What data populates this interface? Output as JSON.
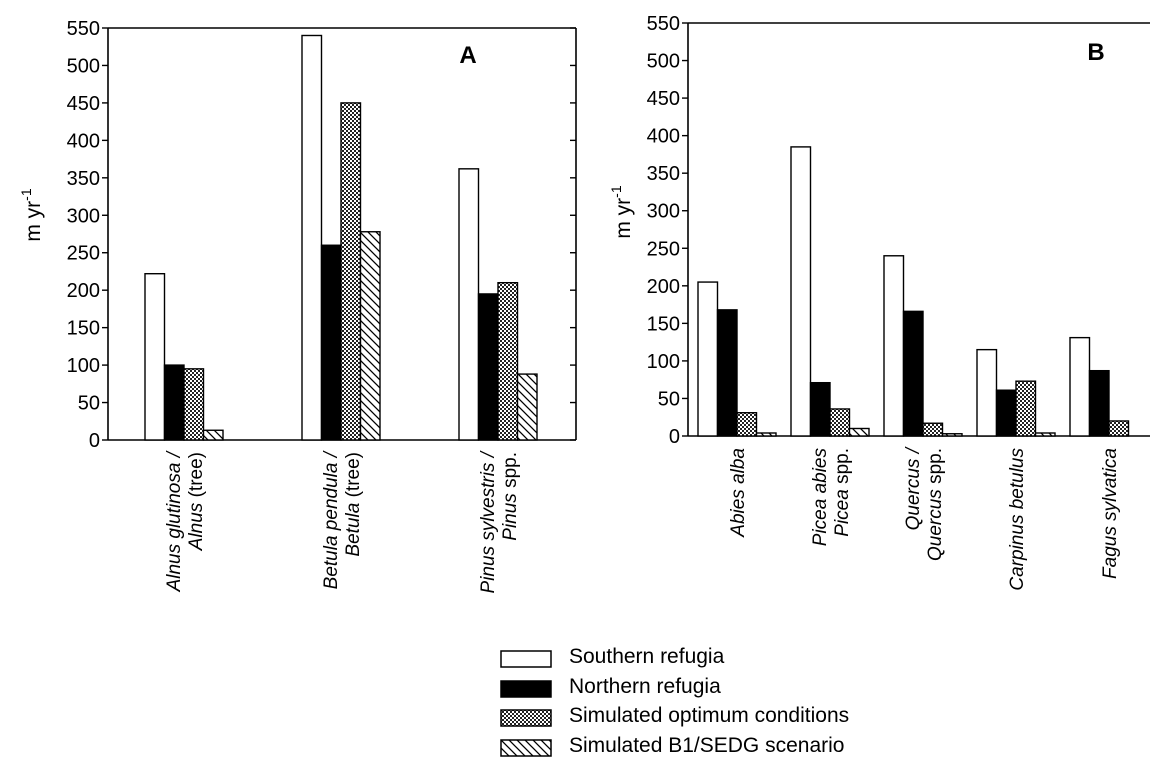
{
  "chart_data": [
    {
      "type": "bar",
      "panel_label": "A",
      "ylabel": "m yr",
      "ylabel_sup": "-1",
      "ylim": [
        0,
        550
      ],
      "yticks": [
        0,
        50,
        100,
        150,
        200,
        250,
        300,
        350,
        400,
        450,
        500,
        550
      ],
      "categories": [
        {
          "italic": "Alnus glutinosa /",
          "line2_italic": "Alnus",
          "line2_plain": " (tree)"
        },
        {
          "italic": "Betula pendula /",
          "line2_italic": "Betula",
          "line2_plain": " (tree)"
        },
        {
          "italic": "Pinus sylvestris /",
          "line2_italic": "Pinus",
          "line2_plain": " spp."
        }
      ],
      "series": [
        {
          "name": "Southern refugia",
          "values": [
            222,
            540,
            362
          ]
        },
        {
          "name": "Northern refugia",
          "values": [
            100,
            260,
            195
          ]
        },
        {
          "name": "Simulated optimum conditions",
          "values": [
            95,
            450,
            210
          ]
        },
        {
          "name": "Simulated B1/SEDG scenario",
          "values": [
            13,
            278,
            88
          ]
        }
      ]
    },
    {
      "type": "bar",
      "panel_label": "B",
      "ylabel": "m yr",
      "ylabel_sup": "-1",
      "ylim": [
        0,
        550
      ],
      "yticks": [
        0,
        50,
        100,
        150,
        200,
        250,
        300,
        350,
        400,
        450,
        500,
        550
      ],
      "categories": [
        {
          "italic": "Abies alba",
          "line2_italic": "",
          "line2_plain": ""
        },
        {
          "italic": "Picea abies",
          "line2_italic": "Picea",
          "line2_plain": " spp."
        },
        {
          "italic": "Quercus /",
          "line2_italic": "Quercus",
          "line2_plain": " spp."
        },
        {
          "italic": "Carpinus betulus",
          "line2_italic": "",
          "line2_plain": ""
        },
        {
          "italic": "Fagus sylvatica",
          "line2_italic": "",
          "line2_plain": ""
        }
      ],
      "series": [
        {
          "name": "Southern refugia",
          "values": [
            205,
            385,
            240,
            115,
            131
          ]
        },
        {
          "name": "Northern refugia",
          "values": [
            168,
            71,
            166,
            61,
            87
          ]
        },
        {
          "name": "Simulated optimum conditions",
          "values": [
            31,
            36,
            17,
            73,
            20
          ]
        },
        {
          "name": "Simulated B1/SEDG scenario",
          "values": [
            4,
            10,
            3,
            4,
            null
          ]
        }
      ]
    }
  ],
  "legend": {
    "entries": [
      {
        "label": "Southern refugia",
        "style": "open"
      },
      {
        "label": "Northern refugia",
        "style": "solid"
      },
      {
        "label": "Simulated optimum conditions",
        "style": "crosshatch"
      },
      {
        "label": "Simulated B1/SEDG scenario",
        "style": "diagonal"
      }
    ]
  }
}
